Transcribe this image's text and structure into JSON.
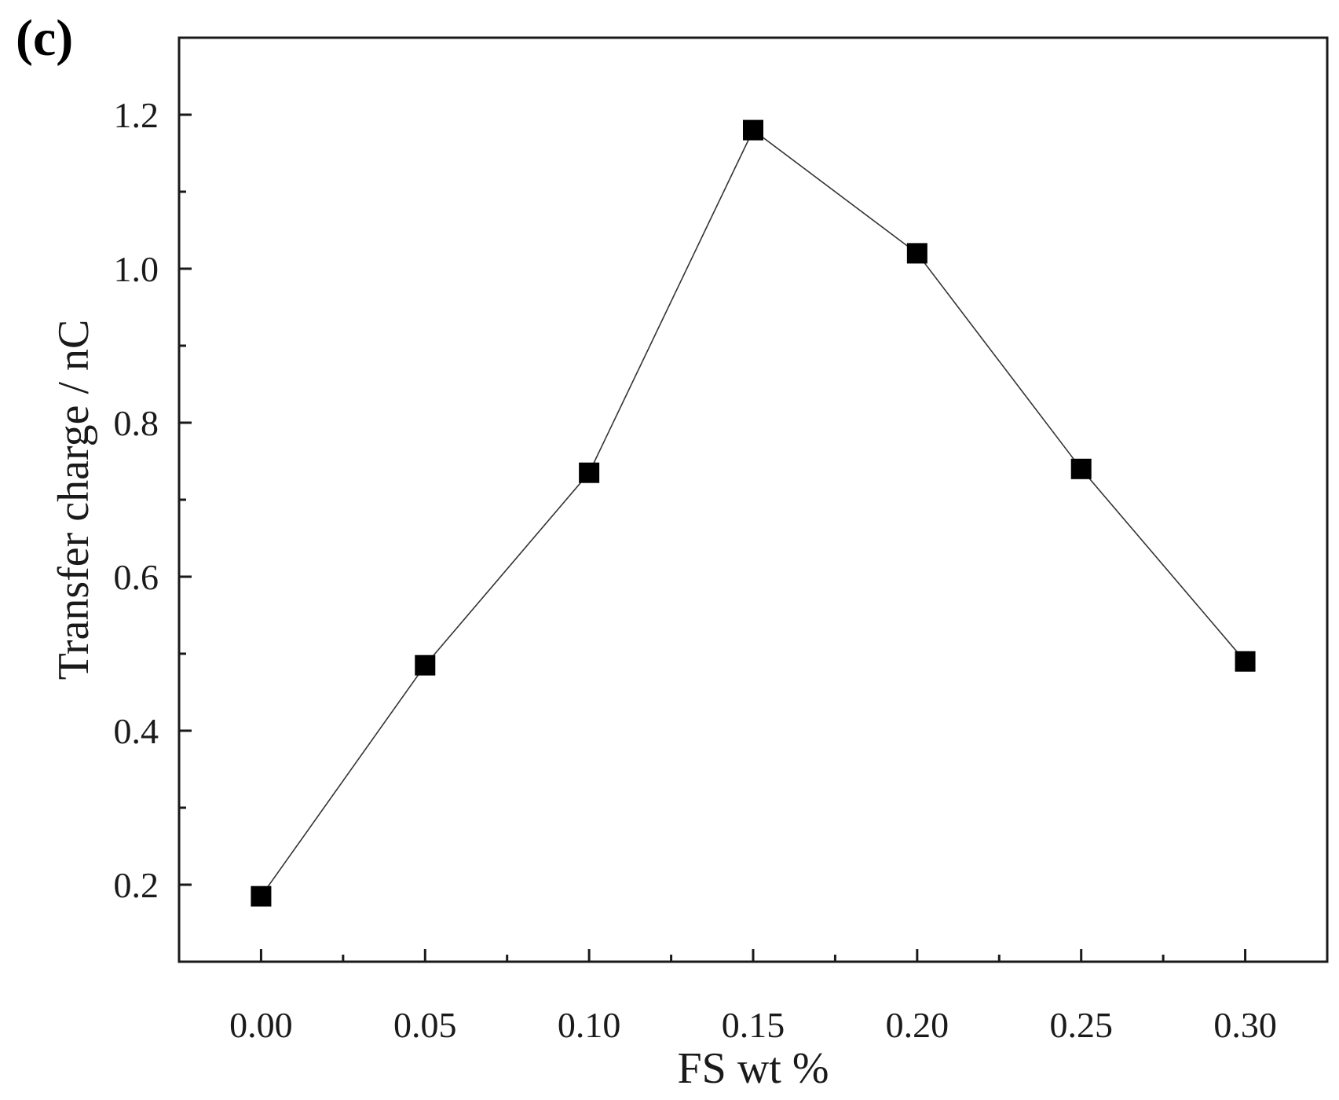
{
  "panel_label": "(c)",
  "chart_data": {
    "type": "line",
    "xlabel": "FS wt %",
    "ylabel": "Transfer charge / nC",
    "x": [
      0.0,
      0.05,
      0.1,
      0.15,
      0.2,
      0.25,
      0.3
    ],
    "series": [
      {
        "values": [
          0.185,
          0.485,
          0.735,
          1.18,
          1.02,
          0.74,
          0.49
        ],
        "marker": "square",
        "color": "#000000"
      }
    ],
    "x_ticks": [
      "0.00",
      "0.05",
      "0.10",
      "0.15",
      "0.20",
      "0.25",
      "0.30"
    ],
    "y_ticks": [
      "0.2",
      "0.4",
      "0.6",
      "0.8",
      "1.0",
      "1.2"
    ],
    "xlim": [
      -0.025,
      0.325
    ],
    "ylim": [
      0.1,
      1.3
    ],
    "grid": false,
    "legend": "none"
  }
}
